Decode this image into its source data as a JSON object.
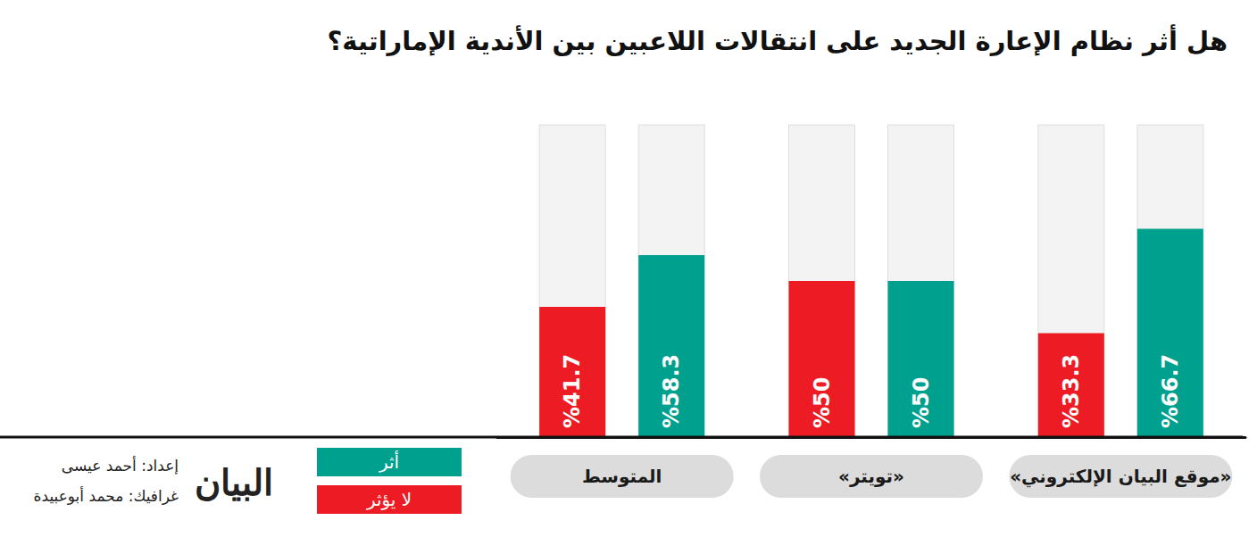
{
  "chart_data": {
    "type": "bar",
    "title": "هل أثر نظام الإعارة الجديد على انتقالات اللاعبين بين الأندية الإماراتية؟",
    "categories": [
      "«موقع البيان الإلكتروني»",
      "«تويتر»",
      "المتوسط"
    ],
    "series": [
      {
        "name": "أثر",
        "color": "#00a08e",
        "values": [
          66.7,
          50,
          58.3
        ],
        "value_labels": [
          "%66.7",
          "%50",
          "%58.3"
        ]
      },
      {
        "name": "لا يؤثر",
        "color": "#ed1c24",
        "values": [
          33.3,
          50,
          41.7
        ],
        "value_labels": [
          "%33.3",
          "%50",
          "%41.7"
        ]
      }
    ],
    "ylim": [
      0,
      100
    ],
    "data_labels": true,
    "tick_labels": "x",
    "grid": false,
    "annotations": [
      "إعداد: أحمد عيسى",
      "غرافيك: محمد أبوعبيدة"
    ],
    "logo": "البيان"
  }
}
